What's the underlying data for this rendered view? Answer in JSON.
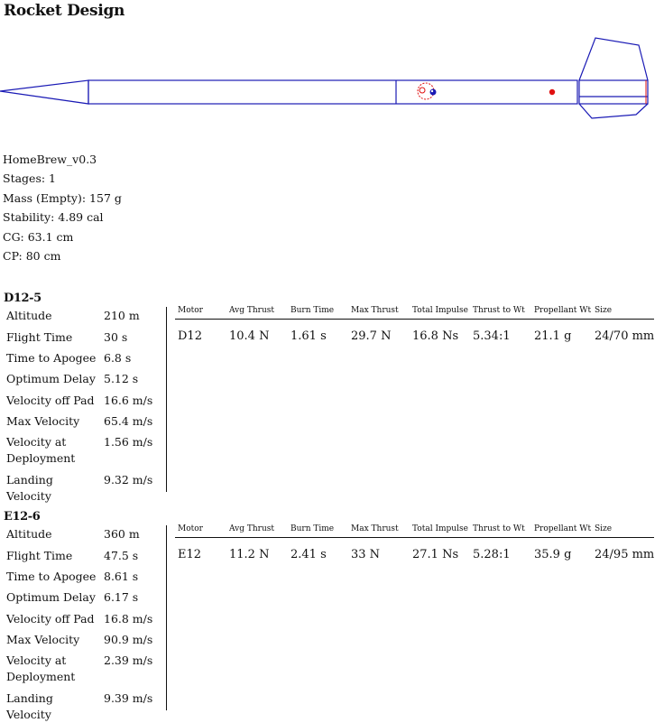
{
  "page_title": "Rocket Design",
  "rocket": {
    "name": "HomeBrew_v0.3",
    "stages": "Stages: 1",
    "mass": "Mass (Empty): 157 g",
    "stability": "Stability: 4.89 cal",
    "cg": "CG: 63.1 cm",
    "cp": "CP: 80 cm"
  },
  "colors": {
    "outline": "#1a1ab5",
    "cg_mark": "#e01010",
    "text": "#111111"
  },
  "motor_columns": [
    "Motor",
    "Avg Thrust",
    "Burn Time",
    "Max Thrust",
    "Total Impulse",
    "Thrust to Wt",
    "Propellant Wt",
    "Size"
  ],
  "configs": [
    {
      "name": "D12-5",
      "stats": [
        {
          "label": "Altitude",
          "value": "210 m"
        },
        {
          "label": "Flight Time",
          "value": "30 s"
        },
        {
          "label": "Time to Apogee",
          "value": "6.8 s"
        },
        {
          "label": "Optimum Delay",
          "value": "5.12 s"
        },
        {
          "label": "Velocity off Pad",
          "value": "16.6 m/s"
        },
        {
          "label": "Max Velocity",
          "value": "65.4 m/s"
        },
        {
          "label": "Velocity at Deployment",
          "value": "1.56 m/s"
        },
        {
          "label": "Landing Velocity",
          "value": "9.32 m/s"
        }
      ],
      "motor": {
        "motor": "D12",
        "avg_thrust": "10.4 N",
        "burn_time": "1.61 s",
        "max_thrust": "29.7 N",
        "total_impulse": "16.8 Ns",
        "thrust_to_wt": "5.34:1",
        "propellant_wt": "21.1 g",
        "size": "24/70 mm"
      }
    },
    {
      "name": "E12-6",
      "stats": [
        {
          "label": "Altitude",
          "value": "360 m"
        },
        {
          "label": "Flight Time",
          "value": "47.5 s"
        },
        {
          "label": "Time to Apogee",
          "value": "8.61 s"
        },
        {
          "label": "Optimum Delay",
          "value": "6.17 s"
        },
        {
          "label": "Velocity off Pad",
          "value": "16.8 m/s"
        },
        {
          "label": "Max Velocity",
          "value": "90.9 m/s"
        },
        {
          "label": "Velocity at Deployment",
          "value": "2.39 m/s"
        },
        {
          "label": "Landing Velocity",
          "value": "9.39 m/s"
        }
      ],
      "motor": {
        "motor": "E12",
        "avg_thrust": "11.2 N",
        "burn_time": "2.41 s",
        "max_thrust": "33 N",
        "total_impulse": "27.1 Ns",
        "thrust_to_wt": "5.28:1",
        "propellant_wt": "35.9 g",
        "size": "24/95 mm"
      }
    }
  ]
}
